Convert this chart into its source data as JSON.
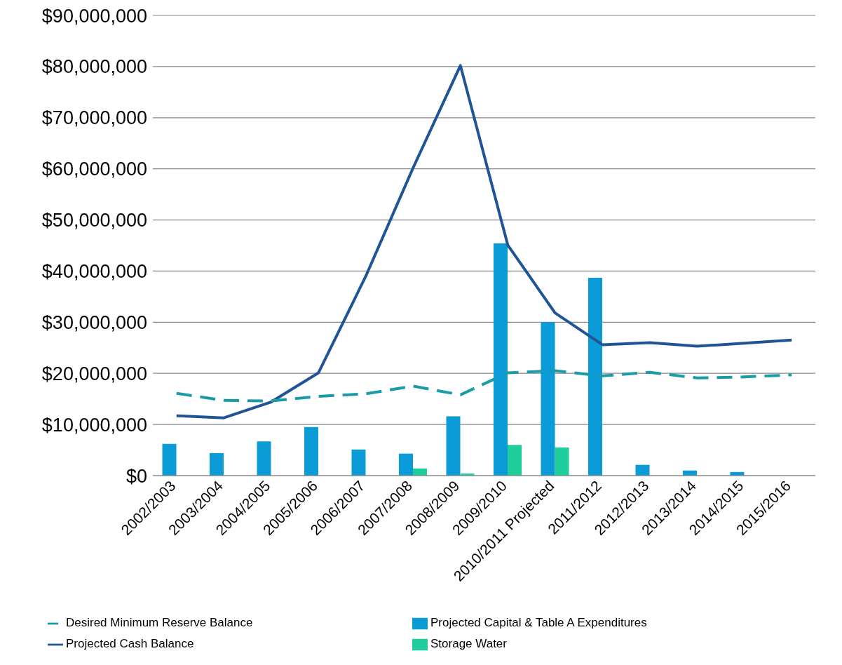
{
  "chart_data": {
    "type": "bar",
    "categories": [
      "2002/2003",
      "2003/2004",
      "2004/2005",
      "2005/2006",
      "2006/2007",
      "2007/2008",
      "2008/2009",
      "2009/2010",
      "2010/2011 Projected",
      "2011/2012",
      "2012/2013",
      "2013/2014",
      "2014/2015",
      "2015/2016"
    ],
    "series": [
      {
        "name": "Projected Capital & Table A Expenditures",
        "color": "#0b9bd7",
        "values": [
          6200000,
          4400000,
          6700000,
          9500000,
          5100000,
          4300000,
          11600000,
          45400000,
          30000000,
          38700000,
          2100000,
          1000000,
          700000,
          0
        ]
      },
      {
        "name": "Storage Water",
        "color": "#1fce9c",
        "values": [
          0,
          0,
          0,
          0,
          0,
          1400000,
          400000,
          6000000,
          5500000,
          0,
          0,
          0,
          0,
          0
        ]
      },
      {
        "name": "Projected Cash Balance",
        "type": "line",
        "color": "#1f5596",
        "line_style": "solid",
        "values": [
          11700000,
          11300000,
          14400000,
          20100000,
          39000000,
          60200000,
          80200000,
          45100000,
          31800000,
          25600000,
          26000000,
          25300000,
          25900000,
          26500000
        ]
      },
      {
        "name": "Desired Minimum Reserve Balance",
        "type": "line",
        "color": "#1a9ba8",
        "line_style": "dashed",
        "values": [
          16100000,
          14700000,
          14600000,
          15500000,
          16000000,
          17500000,
          15800000,
          20100000,
          20500000,
          19500000,
          20200000,
          19100000,
          19300000,
          19700000
        ]
      }
    ],
    "ylim": [
      0,
      90000000
    ],
    "yticks": [
      {
        "value": 0,
        "label": "$0"
      },
      {
        "value": 10000000,
        "label": "$10,000,000"
      },
      {
        "value": 20000000,
        "label": "$20,000,000"
      },
      {
        "value": 30000000,
        "label": "$30,000,000"
      },
      {
        "value": 40000000,
        "label": "$40,000,000"
      },
      {
        "value": 50000000,
        "label": "$50,000,000"
      },
      {
        "value": 60000000,
        "label": "$60,000,000"
      },
      {
        "value": 70000000,
        "label": "$70,000,000"
      },
      {
        "value": 80000000,
        "label": "$80,000,000"
      },
      {
        "value": 90000000,
        "label": "$90,000,000"
      }
    ],
    "grid": "y",
    "legend": "bottom",
    "marker": "none"
  }
}
